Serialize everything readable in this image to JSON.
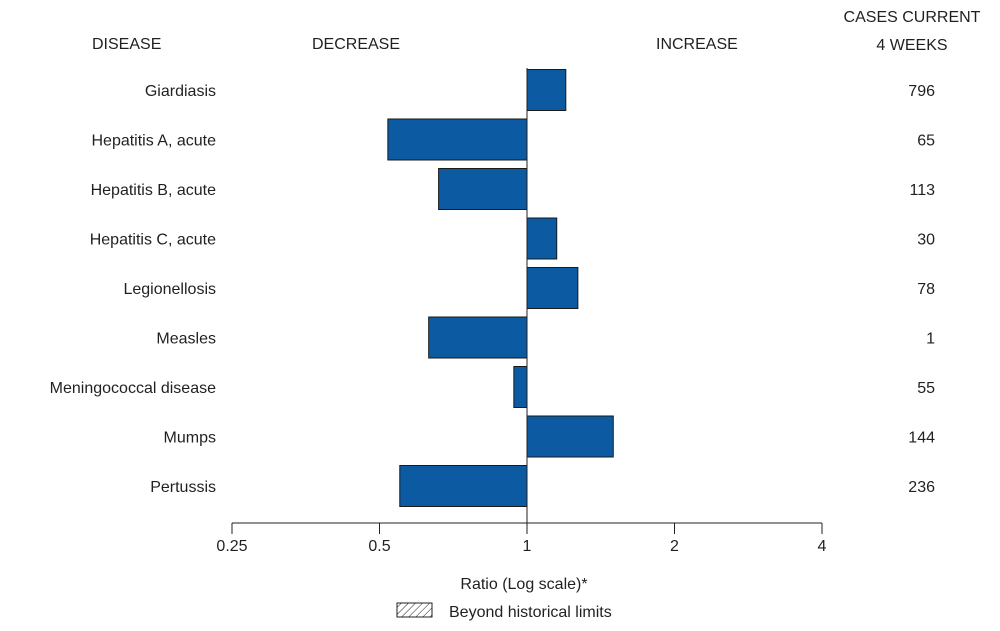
{
  "headers": {
    "disease": "DISEASE",
    "decrease": "DECREASE",
    "increase": "INCREASE",
    "cases_line1": "CASES CURRENT",
    "cases_line2": "4 WEEKS"
  },
  "legend": {
    "label": "Beyond historical limits",
    "pattern": "hatched"
  },
  "colors": {
    "bar": "#0b5aa2",
    "text": "#231f20",
    "axis": "#231f20"
  },
  "chart_data": {
    "type": "bar",
    "orientation": "horizontal",
    "categories": [
      "Giardiasis",
      "Hepatitis A, acute",
      "Hepatitis B, acute",
      "Hepatitis C, acute",
      "Legionellosis",
      "Measles",
      "Meningococcal disease",
      "Mumps",
      "Pertussis"
    ],
    "values": [
      1.2,
      0.52,
      0.66,
      1.15,
      1.27,
      0.63,
      0.94,
      1.5,
      0.55
    ],
    "cases": [
      "796",
      "65",
      "113",
      "30",
      "78",
      "1",
      "55",
      "144",
      "236"
    ],
    "xlabel": "Ratio (Log scale)*",
    "xscale": "log2",
    "xlim": [
      0.25,
      4
    ],
    "baseline": 1,
    "xticks": [
      0.25,
      0.5,
      1,
      2,
      4
    ],
    "xtick_labels": [
      "0.25",
      "0.5",
      "1",
      "2",
      "4"
    ],
    "grid": false
  }
}
